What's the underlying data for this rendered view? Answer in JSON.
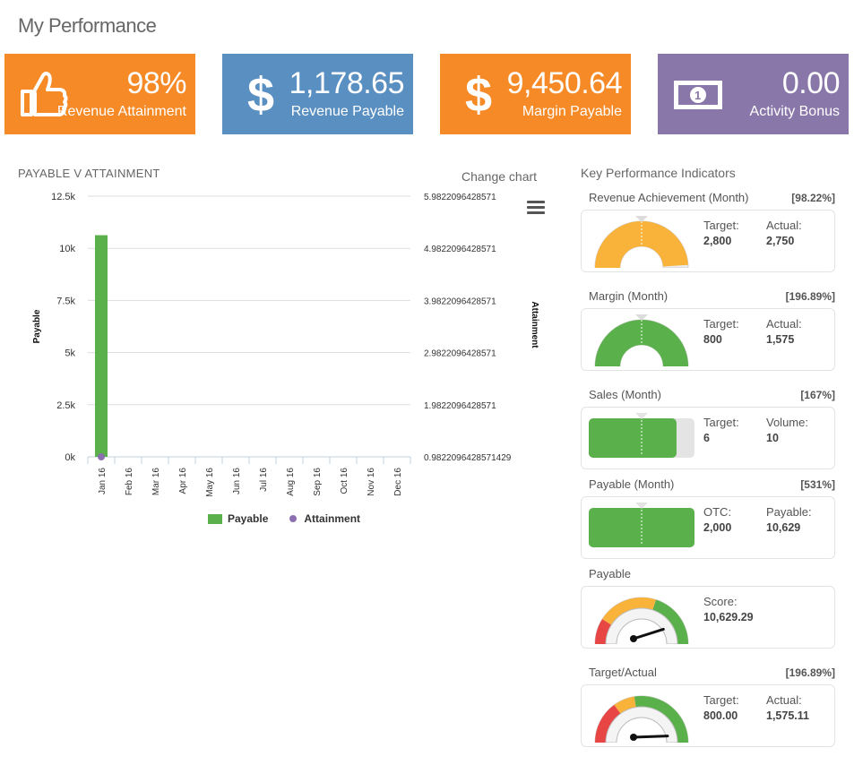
{
  "page": {
    "title": "My Performance"
  },
  "tiles": [
    {
      "value": "98%",
      "label": "Revenue Attainment",
      "icon": "thumbs-up-icon",
      "color": "#f58a26"
    },
    {
      "value": "1,178.65",
      "label": "Revenue Payable",
      "icon": "dollar-icon",
      "color": "#5a8fc1"
    },
    {
      "value": "9,450.64",
      "label": "Margin Payable",
      "icon": "dollar-icon",
      "color": "#f58a26"
    },
    {
      "value": "0.00",
      "label": "Activity Bonus",
      "icon": "banknote-icon",
      "color": "#8977a9"
    }
  ],
  "chart_section": {
    "title": "PAYABLE V ATTAINMENT",
    "change_chart": "Change chart",
    "menu_icon": "hamburger-menu-icon"
  },
  "chart_data": {
    "type": "bar",
    "title": "PAYABLE V ATTAINMENT",
    "categories": [
      "Jan 16",
      "Feb 16",
      "Mar 16",
      "Apr 16",
      "May 16",
      "Jun 16",
      "Jul 16",
      "Aug 16",
      "Sep 16",
      "Oct 16",
      "Nov 16",
      "Dec 16"
    ],
    "series": [
      {
        "name": "Payable",
        "type": "bar",
        "axis": "left",
        "color": "#5ab04b",
        "values": [
          10629.29,
          0,
          0,
          0,
          0,
          0,
          0,
          0,
          0,
          0,
          0,
          0
        ]
      },
      {
        "name": "Attainment",
        "type": "scatter",
        "axis": "right",
        "color": "#8c6fb0",
        "values": [
          0.9822096428571429,
          null,
          null,
          null,
          null,
          null,
          null,
          null,
          null,
          null,
          null,
          null
        ]
      }
    ],
    "ylabel": "Payable",
    "ylabel_right": "Attainment",
    "ylim": [
      0,
      12500
    ],
    "y_ticks": [
      "0k",
      "2.5k",
      "5k",
      "7.5k",
      "10k",
      "12.5k"
    ],
    "y_tick_values": [
      0,
      2500,
      5000,
      7500,
      10000,
      12500
    ],
    "y2lim": [
      0.9822096428571429,
      5.9822096428571
    ],
    "y2_ticks": [
      "0.9822096428571429",
      "1.9822096428571",
      "2.9822096428571",
      "3.9822096428571",
      "4.9822096428571",
      "5.9822096428571"
    ],
    "legend": [
      "Payable",
      "Attainment"
    ],
    "legend_position": "bottom",
    "grid": true
  },
  "kpi": {
    "heading": "Key Performance Indicators",
    "items": [
      {
        "title": "Revenue Achievement (Month)",
        "pct": "[98.22%]",
        "type": "semi",
        "fill_fraction": 0.98,
        "fill_color": "#f9b23a",
        "left_label": "Target:",
        "left_value": "2,800",
        "right_label": "Actual:",
        "right_value": "2,750"
      },
      {
        "title": "Margin (Month)",
        "pct": "[196.89%]",
        "type": "semi",
        "fill_fraction": 1.0,
        "fill_color": "#5ab04b",
        "left_label": "Target:",
        "left_value": "800",
        "right_label": "Actual:",
        "right_value": "1,575"
      },
      {
        "title": "Sales (Month)",
        "pct": "[167%]",
        "type": "bar",
        "fill_fraction": 0.83,
        "fill_color": "#5ab04b",
        "left_label": "Target:",
        "left_value": "6",
        "right_label": "Volume:",
        "right_value": "10"
      },
      {
        "title": "Payable (Month)",
        "pct": "[531%]",
        "type": "bar",
        "fill_fraction": 1.0,
        "fill_color": "#5ab04b",
        "left_label": "OTC:",
        "left_value": "2,000",
        "right_label": "Payable:",
        "right_value": "10,629"
      },
      {
        "title": "Payable",
        "pct": "",
        "type": "needle",
        "needle_fraction": 0.84,
        "left_label": "Score:",
        "left_value": "10,629.29",
        "right_label": "",
        "right_value": ""
      },
      {
        "title": "Target/Actual",
        "pct": "[196.89%]",
        "type": "needle",
        "needle_fraction": 0.98,
        "left_label": "Target:",
        "left_value": "800.00",
        "right_label": "Actual:",
        "right_value": "1,575.11"
      }
    ]
  },
  "colors": {
    "orange": "#f58a26",
    "blue": "#5a8fc1",
    "purple": "#8977a9",
    "green": "#5ab04b",
    "amber": "#f9b23a",
    "red": "#e84545"
  }
}
